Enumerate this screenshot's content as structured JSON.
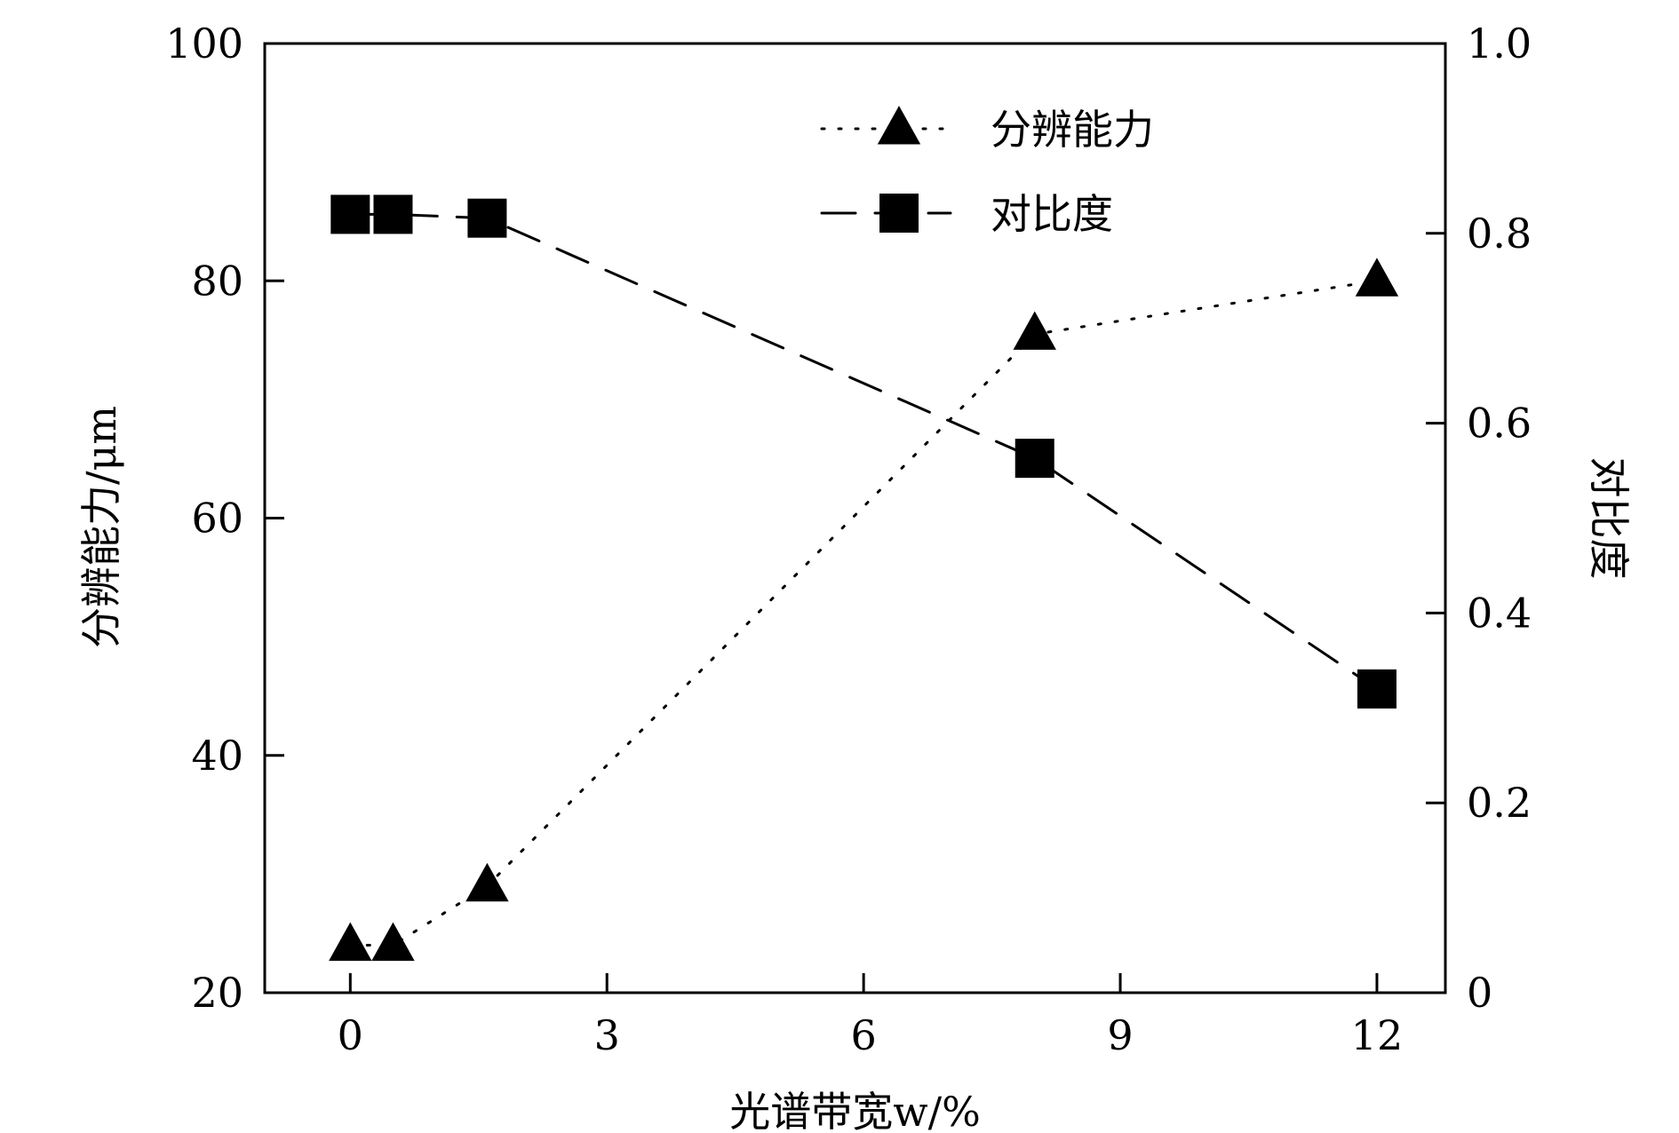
{
  "chart_data": {
    "type": "line",
    "x_axis": {
      "label": "光谱带宽w/%",
      "range": [
        -1,
        12.8
      ],
      "ticks": [
        0,
        3,
        6,
        9,
        12
      ],
      "tick_labels": [
        "0",
        "3",
        "6",
        "9",
        "12"
      ]
    },
    "y_axis_left": {
      "label": "分辨能力/μm",
      "range": [
        20,
        100
      ],
      "ticks": [
        20,
        40,
        60,
        80,
        100
      ],
      "tick_labels": [
        "20",
        "40",
        "60",
        "80",
        "100"
      ]
    },
    "y_axis_right": {
      "label": "对比度",
      "range": [
        0,
        1.0
      ],
      "ticks": [
        0,
        0.2,
        0.4,
        0.6,
        0.8,
        1.0
      ],
      "tick_labels": [
        "0",
        "0.2",
        "0.4",
        "0.6",
        "0.8",
        "1.0"
      ]
    },
    "series": [
      {
        "name": "分辨能力",
        "axis": "left",
        "marker": "triangle",
        "line_style": "dotted",
        "color": "#000000",
        "x": [
          0,
          0.5,
          1.6,
          8,
          12
        ],
        "y": [
          24,
          24,
          29,
          75.5,
          80
        ]
      },
      {
        "name": "对比度",
        "axis": "right",
        "marker": "square",
        "line_style": "dashed",
        "color": "#000000",
        "x": [
          0,
          0.5,
          1.6,
          8,
          12
        ],
        "y": [
          0.82,
          0.82,
          0.816,
          0.563,
          0.32
        ]
      }
    ],
    "legend": {
      "position": "top-right"
    },
    "grid": false
  }
}
